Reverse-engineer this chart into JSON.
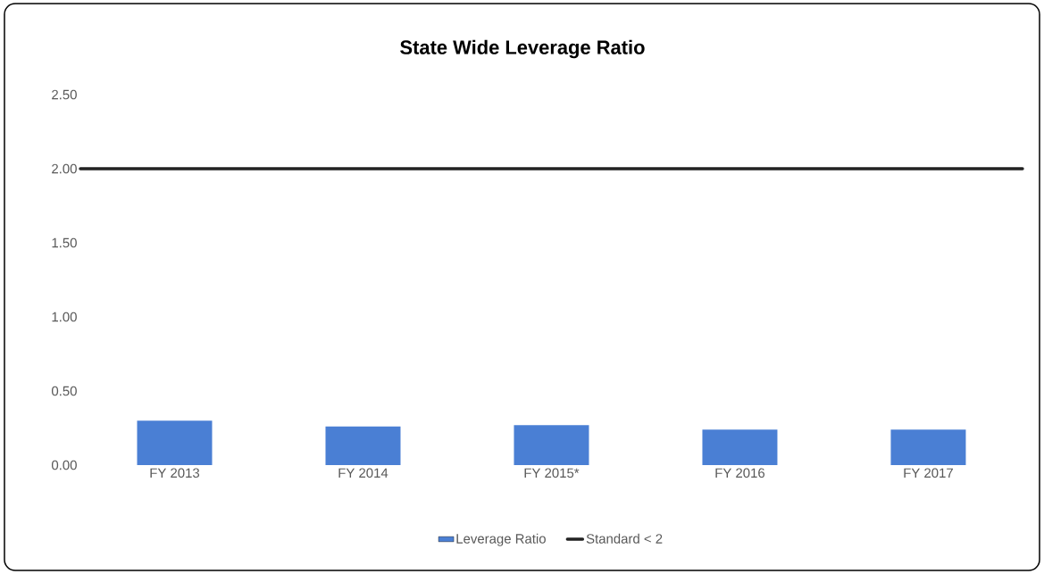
{
  "chart_data": {
    "type": "bar",
    "title": "State Wide Leverage Ratio",
    "categories": [
      "FY 2013",
      "FY 2014",
      "FY 2015*",
      "FY 2016",
      "FY 2017"
    ],
    "series": [
      {
        "name": "Leverage Ratio",
        "color": "#4a7fd4",
        "values": [
          0.3,
          0.26,
          0.27,
          0.24,
          0.24
        ]
      }
    ],
    "ylim": [
      0,
      2.5
    ],
    "yticks": [
      {
        "value": 0,
        "label": "0.00"
      },
      {
        "value": 0.5,
        "label": "0.50"
      },
      {
        "value": 1,
        "label": "1.00"
      },
      {
        "value": 1.5,
        "label": "1.50"
      },
      {
        "value": 2,
        "label": "2.00"
      },
      {
        "value": 2.5,
        "label": "2.50"
      }
    ],
    "ref_lines": [
      {
        "axis": "y",
        "value": 2,
        "label": "Standard < 2",
        "color": "#222222",
        "line_style": "solid"
      }
    ],
    "legend": "bottom"
  }
}
